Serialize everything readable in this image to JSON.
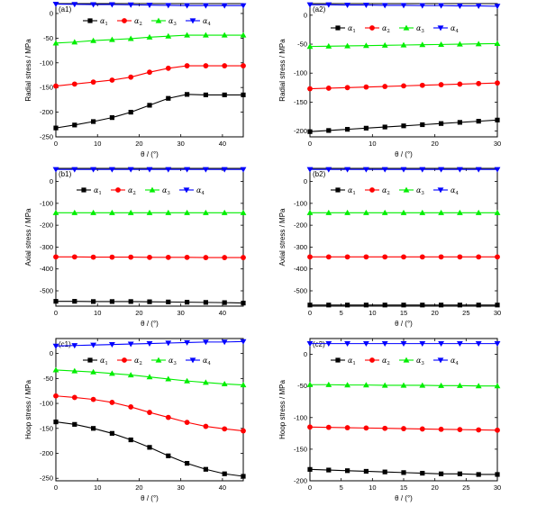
{
  "legend_labels": [
    "α1",
    "α2",
    "α3",
    "α4"
  ],
  "xlabel": "θ / (°)",
  "chart_data": [
    {
      "id": "a1",
      "type": "line",
      "panel_label": "(a1)",
      "ylabel": "Radial stress / MPa",
      "xlabel": "θ / (°)",
      "xlim": [
        0,
        45
      ],
      "ylim": [
        -250,
        20
      ],
      "xticks": [
        "0",
        "10",
        "20",
        "30",
        "40"
      ],
      "xtick_values": [
        0,
        10,
        20,
        30,
        40
      ],
      "yticks": [
        "-250",
        "-200",
        "-150",
        "-100",
        "-50",
        "0"
      ],
      "ytick_values": [
        -250,
        -200,
        -150,
        -100,
        -50,
        0
      ],
      "series": [
        {
          "name": "α1",
          "color": "#000000",
          "marker": "square",
          "x": [
            0,
            4.5,
            9,
            13.5,
            18,
            22.5,
            27,
            31.5,
            36,
            40.5,
            45
          ],
          "y": [
            -232,
            -226,
            -219,
            -211,
            -200,
            -186,
            -172,
            -164,
            -165,
            -165,
            -165
          ]
        },
        {
          "name": "α2",
          "color": "#ff0000",
          "marker": "circle",
          "x": [
            0,
            4.5,
            9,
            13.5,
            18,
            22.5,
            27,
            31.5,
            36,
            40.5,
            45
          ],
          "y": [
            -147,
            -143,
            -139,
            -135,
            -129,
            -119,
            -111,
            -106,
            -106,
            -106,
            -106
          ]
        },
        {
          "name": "α3",
          "color": "#00ee00",
          "marker": "triangle-up",
          "x": [
            0,
            4.5,
            9,
            13.5,
            18,
            22.5,
            27,
            31.5,
            36,
            40.5,
            45
          ],
          "y": [
            -60,
            -58,
            -55,
            -53,
            -51,
            -48,
            -46,
            -44,
            -44,
            -44,
            -44
          ]
        },
        {
          "name": "α4",
          "color": "#0000ff",
          "marker": "triangle-down",
          "x": [
            0,
            4.5,
            9,
            13.5,
            18,
            22.5,
            27,
            31.5,
            36,
            40.5,
            45
          ],
          "y": [
            19,
            18.5,
            18,
            18,
            17.5,
            17,
            16.5,
            16,
            16,
            16,
            16
          ]
        }
      ]
    },
    {
      "id": "a2",
      "type": "line",
      "panel_label": "(a2)",
      "ylabel": "Radial stress / MPa",
      "xlabel": "θ / (°)",
      "xlim": [
        0,
        30
      ],
      "ylim": [
        -210,
        20
      ],
      "xticks": [
        "0",
        "10",
        "20",
        "30"
      ],
      "xtick_values": [
        0,
        10,
        20,
        30
      ],
      "yticks": [
        "-200",
        "-150",
        "-100",
        "-50",
        "0"
      ],
      "ytick_values": [
        -200,
        -150,
        -100,
        -50,
        0
      ],
      "series": [
        {
          "name": "α1",
          "color": "#000000",
          "marker": "square",
          "x": [
            0,
            3,
            6,
            9,
            12,
            15,
            18,
            21,
            24,
            27,
            30
          ],
          "y": [
            -201,
            -199,
            -197,
            -195,
            -193,
            -191,
            -189,
            -187,
            -185,
            -183,
            -181
          ]
        },
        {
          "name": "α2",
          "color": "#ff0000",
          "marker": "circle",
          "x": [
            0,
            3,
            6,
            9,
            12,
            15,
            18,
            21,
            24,
            27,
            30
          ],
          "y": [
            -127,
            -126,
            -125,
            -124,
            -123,
            -122,
            -121,
            -120,
            -119,
            -118,
            -117
          ]
        },
        {
          "name": "α3",
          "color": "#00ee00",
          "marker": "triangle-up",
          "x": [
            0,
            3,
            6,
            9,
            12,
            15,
            18,
            21,
            24,
            27,
            30
          ],
          "y": [
            -54,
            -53.5,
            -53,
            -52.5,
            -52,
            -51.5,
            -51,
            -50.5,
            -50,
            -49.5,
            -49
          ]
        },
        {
          "name": "α4",
          "color": "#0000ff",
          "marker": "triangle-down",
          "x": [
            0,
            3,
            6,
            9,
            12,
            15,
            18,
            21,
            24,
            27,
            30
          ],
          "y": [
            18,
            18,
            17.5,
            17.5,
            17,
            17,
            16.5,
            16.5,
            16,
            16,
            15.5
          ]
        }
      ]
    },
    {
      "id": "b1",
      "type": "line",
      "panel_label": "(b1)",
      "ylabel": "Axial stress / MPa",
      "xlabel": "θ / (°)",
      "xlim": [
        0,
        45
      ],
      "ylim": [
        -570,
        60
      ],
      "xticks": [
        "0",
        "10",
        "20",
        "30",
        "40"
      ],
      "xtick_values": [
        0,
        10,
        20,
        30,
        40
      ],
      "yticks": [
        "-500",
        "-400",
        "-300",
        "-200",
        "-100",
        "0"
      ],
      "ytick_values": [
        -500,
        -400,
        -300,
        -200,
        -100,
        0
      ],
      "series": [
        {
          "name": "α1",
          "color": "#000000",
          "marker": "square",
          "x": [
            0,
            4.5,
            9,
            13.5,
            18,
            22.5,
            27,
            31.5,
            36,
            40.5,
            45
          ],
          "y": [
            -548,
            -548,
            -549,
            -549,
            -549,
            -550,
            -551,
            -552,
            -553,
            -554,
            -556
          ]
        },
        {
          "name": "α2",
          "color": "#ff0000",
          "marker": "circle",
          "x": [
            0,
            4.5,
            9,
            13.5,
            18,
            22.5,
            27,
            31.5,
            36,
            40.5,
            45
          ],
          "y": [
            -345,
            -345,
            -346,
            -346,
            -346,
            -347,
            -347,
            -347,
            -348,
            -348,
            -348
          ]
        },
        {
          "name": "α3",
          "color": "#00ee00",
          "marker": "triangle-up",
          "x": [
            0,
            4.5,
            9,
            13.5,
            18,
            22.5,
            27,
            31.5,
            36,
            40.5,
            45
          ],
          "y": [
            -143,
            -143,
            -143,
            -143,
            -143,
            -143,
            -143,
            -143,
            -143,
            -143,
            -143
          ]
        },
        {
          "name": "α4",
          "color": "#0000ff",
          "marker": "triangle-down",
          "x": [
            0,
            4.5,
            9,
            13.5,
            18,
            22.5,
            27,
            31.5,
            36,
            40.5,
            45
          ],
          "y": [
            55,
            55,
            55,
            55,
            55,
            55,
            55,
            55,
            55,
            55,
            55
          ]
        }
      ]
    },
    {
      "id": "b2",
      "type": "line",
      "panel_label": "(b2)",
      "ylabel": "Axial stress / MPa",
      "xlabel": "θ / (°)",
      "xlim": [
        0,
        30
      ],
      "ylim": [
        -570,
        60
      ],
      "xticks": [
        "0",
        "5",
        "10",
        "15",
        "20",
        "25",
        "30"
      ],
      "xtick_values": [
        0,
        5,
        10,
        15,
        20,
        25,
        30
      ],
      "yticks": [
        "-500",
        "-400",
        "-300",
        "-200",
        "-100",
        "0"
      ],
      "ytick_values": [
        -500,
        -400,
        -300,
        -200,
        -100,
        0
      ],
      "series": [
        {
          "name": "α1",
          "color": "#000000",
          "marker": "square",
          "x": [
            0,
            3,
            6,
            9,
            12,
            15,
            18,
            21,
            24,
            27,
            30
          ],
          "y": [
            -565,
            -565,
            -565,
            -565,
            -565,
            -565,
            -565,
            -565,
            -565,
            -565,
            -565
          ]
        },
        {
          "name": "α2",
          "color": "#ff0000",
          "marker": "circle",
          "x": [
            0,
            3,
            6,
            9,
            12,
            15,
            18,
            21,
            24,
            27,
            30
          ],
          "y": [
            -345,
            -345,
            -345,
            -345,
            -345,
            -345,
            -345,
            -345,
            -345,
            -345,
            -345
          ]
        },
        {
          "name": "α3",
          "color": "#00ee00",
          "marker": "triangle-up",
          "x": [
            0,
            3,
            6,
            9,
            12,
            15,
            18,
            21,
            24,
            27,
            30
          ],
          "y": [
            -143,
            -143,
            -143,
            -143,
            -143,
            -143,
            -143,
            -143,
            -143,
            -143,
            -143
          ]
        },
        {
          "name": "α4",
          "color": "#0000ff",
          "marker": "triangle-down",
          "x": [
            0,
            3,
            6,
            9,
            12,
            15,
            18,
            21,
            24,
            27,
            30
          ],
          "y": [
            55,
            55,
            55,
            55,
            55,
            55,
            55,
            55,
            55,
            55,
            55
          ]
        }
      ]
    },
    {
      "id": "c1",
      "type": "line",
      "panel_label": "(c1)",
      "ylabel": "Hoop stress / MPa",
      "xlabel": "θ / (°)",
      "xlim": [
        0,
        45
      ],
      "ylim": [
        -255,
        30
      ],
      "xticks": [
        "0",
        "10",
        "20",
        "30",
        "40"
      ],
      "xtick_values": [
        0,
        10,
        20,
        30,
        40
      ],
      "yticks": [
        "-250",
        "-200",
        "-150",
        "-100",
        "-50",
        "0"
      ],
      "ytick_values": [
        -250,
        -200,
        -150,
        -100,
        -50,
        0
      ],
      "series": [
        {
          "name": "α1",
          "color": "#000000",
          "marker": "square",
          "x": [
            0,
            4.5,
            9,
            13.5,
            18,
            22.5,
            27,
            31.5,
            36,
            40.5,
            45
          ],
          "y": [
            -137,
            -142,
            -150,
            -160,
            -173,
            -188,
            -205,
            -220,
            -232,
            -241,
            -246
          ]
        },
        {
          "name": "α2",
          "color": "#ff0000",
          "marker": "circle",
          "x": [
            0,
            4.5,
            9,
            13.5,
            18,
            22.5,
            27,
            31.5,
            36,
            40.5,
            45
          ],
          "y": [
            -85,
            -88,
            -92,
            -98,
            -107,
            -118,
            -128,
            -138,
            -146,
            -151,
            -155
          ]
        },
        {
          "name": "α3",
          "color": "#00ee00",
          "marker": "triangle-up",
          "x": [
            0,
            4.5,
            9,
            13.5,
            18,
            22.5,
            27,
            31.5,
            36,
            40.5,
            45
          ],
          "y": [
            -33,
            -35,
            -37,
            -40,
            -43,
            -47,
            -51,
            -55,
            -58,
            -61,
            -63
          ]
        },
        {
          "name": "α4",
          "color": "#0000ff",
          "marker": "triangle-down",
          "x": [
            0,
            4.5,
            9,
            13.5,
            18,
            22.5,
            27,
            31.5,
            36,
            40.5,
            45
          ],
          "y": [
            15,
            16,
            17,
            18,
            19,
            20,
            21,
            22,
            23,
            23,
            24
          ]
        }
      ]
    },
    {
      "id": "c2",
      "type": "line",
      "panel_label": "(c2)",
      "ylabel": "Hoop stress / MPa",
      "xlabel": "θ / (°)",
      "xlim": [
        0,
        30
      ],
      "ylim": [
        -200,
        25
      ],
      "xticks": [
        "0",
        "5",
        "10",
        "15",
        "20",
        "25",
        "30"
      ],
      "xtick_values": [
        0,
        5,
        10,
        15,
        20,
        25,
        30
      ],
      "yticks": [
        "-200",
        "-150",
        "-100",
        "-50",
        "0"
      ],
      "ytick_values": [
        -200,
        -150,
        -100,
        -50,
        0
      ],
      "series": [
        {
          "name": "α1",
          "color": "#000000",
          "marker": "square",
          "x": [
            0,
            3,
            6,
            9,
            12,
            15,
            18,
            21,
            24,
            27,
            30
          ],
          "y": [
            -182,
            -183,
            -184,
            -185,
            -186,
            -187,
            -188,
            -189,
            -189,
            -190,
            -190
          ]
        },
        {
          "name": "α2",
          "color": "#ff0000",
          "marker": "circle",
          "x": [
            0,
            3,
            6,
            9,
            12,
            15,
            18,
            21,
            24,
            27,
            30
          ],
          "y": [
            -115,
            -115.5,
            -116,
            -116.5,
            -117,
            -117.5,
            -118,
            -118.5,
            -119,
            -119.5,
            -120
          ]
        },
        {
          "name": "α3",
          "color": "#00ee00",
          "marker": "triangle-up",
          "x": [
            0,
            3,
            6,
            9,
            12,
            15,
            18,
            21,
            24,
            27,
            30
          ],
          "y": [
            -48,
            -48,
            -48.5,
            -48.5,
            -49,
            -49,
            -49,
            -49.5,
            -49.5,
            -50,
            -50
          ]
        },
        {
          "name": "α4",
          "color": "#0000ff",
          "marker": "triangle-down",
          "x": [
            0,
            3,
            6,
            9,
            12,
            15,
            18,
            21,
            24,
            27,
            30
          ],
          "y": [
            17,
            17,
            17,
            17,
            17,
            17,
            17,
            17,
            17,
            17,
            17
          ]
        }
      ]
    }
  ]
}
